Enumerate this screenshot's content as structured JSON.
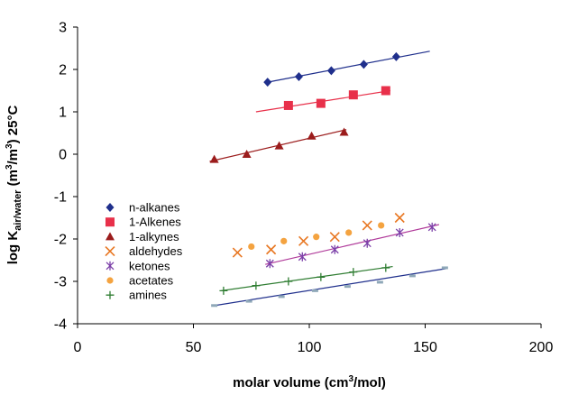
{
  "chart_data": {
    "type": "scatter",
    "xlabel": "molar volume (cm3/mol)",
    "xlabel_parts": {
      "a": "molar volume (cm",
      "sup": "3",
      "b": "/mol)"
    },
    "ylabel": "log Kair/water (m3/m3) 25°C",
    "ylabel_parts": {
      "a": "log K",
      "sub": "air/water",
      "b": " (m",
      "sup1": "3",
      "c": "/m",
      "sup2": "3",
      "d": ") 25°C"
    },
    "xlim": [
      0,
      200
    ],
    "ylim": [
      -4,
      3
    ],
    "xticks": [
      0,
      50,
      100,
      150,
      200
    ],
    "yticks": [
      -4,
      -3,
      -2,
      -1,
      0,
      1,
      2,
      3
    ],
    "grid": false,
    "legend_position": "left",
    "series": [
      {
        "name": "n-alkanes",
        "marker": "diamond",
        "color": "#1f2f8c",
        "x": [
          82,
          95.5,
          109.5,
          123.5,
          137.5
        ],
        "y": [
          1.7,
          1.83,
          1.97,
          2.12,
          2.3
        ],
        "fit": {
          "x": [
            82,
            152
          ],
          "y": [
            1.7,
            2.43
          ],
          "color": "#1f2f8c"
        }
      },
      {
        "name": "1-Alkenes",
        "marker": "square",
        "color": "#e8304a",
        "x": [
          91,
          105,
          119,
          133
        ],
        "y": [
          1.15,
          1.2,
          1.4,
          1.5
        ],
        "fit": {
          "x": [
            77,
            135
          ],
          "y": [
            1.0,
            1.5
          ],
          "color": "#e8304a"
        }
      },
      {
        "name": "1-alkynes",
        "marker": "triangle",
        "color": "#9b1c1c",
        "x": [
          59,
          73,
          87,
          101,
          115
        ],
        "y": [
          -0.12,
          0.0,
          0.2,
          0.43,
          0.52
        ],
        "fit": {
          "x": [
            57,
            116
          ],
          "y": [
            -0.17,
            0.58
          ],
          "color": "#9b1c1c"
        }
      },
      {
        "name": "aldehydes",
        "marker": "x",
        "color": "#e87722",
        "x": [
          69,
          83.5,
          97.5,
          111,
          125,
          139
        ],
        "y": [
          -2.32,
          -2.25,
          -2.05,
          -1.95,
          -1.68,
          -1.5
        ],
        "fit": null
      },
      {
        "name": "ketones",
        "marker": "star",
        "color": "#7b3fa8",
        "x": [
          83,
          97,
          111,
          125,
          139,
          153
        ],
        "y": [
          -2.58,
          -2.42,
          -2.25,
          -2.1,
          -1.85,
          -1.72
        ],
        "fit": {
          "x": [
            81,
            156
          ],
          "y": [
            -2.6,
            -1.66
          ],
          "color": "#b03a9a"
        }
      },
      {
        "name": "acetates",
        "marker": "circle",
        "color": "#f4a340",
        "x": [
          75,
          89,
          103,
          117,
          131
        ],
        "y": [
          -2.18,
          -2.05,
          -1.95,
          -1.85,
          -1.68
        ],
        "fit": null
      },
      {
        "name": "amines",
        "marker": "plus",
        "color": "#2f7d32",
        "x": [
          63,
          77,
          91,
          105,
          119,
          133
        ],
        "y": [
          -3.22,
          -3.1,
          -3.0,
          -2.9,
          -2.78,
          -2.68
        ],
        "fit": {
          "x": [
            62,
            136
          ],
          "y": [
            -3.22,
            -2.65
          ],
          "color": "#2f7d32"
        }
      },
      {
        "name": "",
        "marker": "dash",
        "color": "#8fa8b8",
        "x": [
          59,
          74,
          88,
          102.5,
          116.5,
          130.5,
          144.5,
          158.5
        ],
        "y": [
          -3.57,
          -3.47,
          -3.36,
          -3.22,
          -3.12,
          -3.02,
          -2.87,
          -2.68
        ],
        "fit": {
          "x": [
            58,
            159
          ],
          "y": [
            -3.58,
            -2.7
          ],
          "color": "#1f2f8c"
        }
      }
    ]
  }
}
